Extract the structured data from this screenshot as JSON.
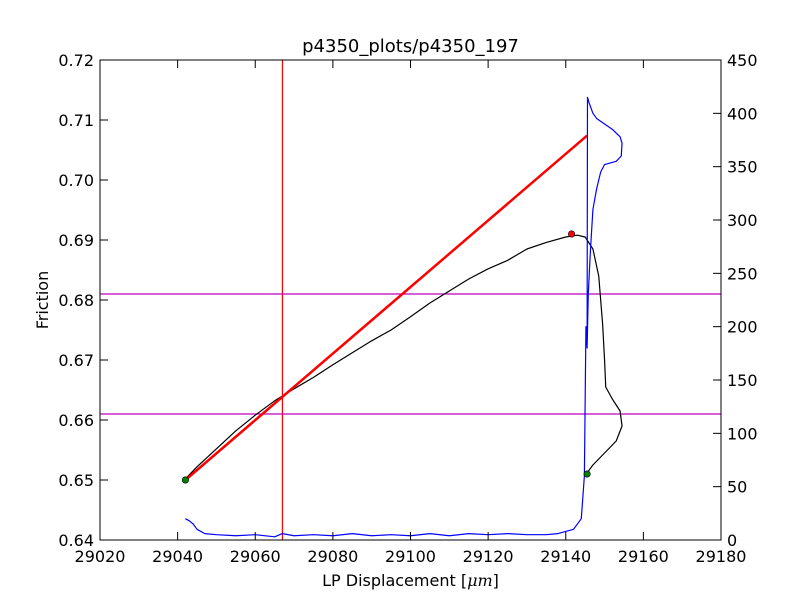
{
  "chart_data": {
    "type": "line",
    "title": "p4350_plots/p4350_197",
    "xlabel": "LP Displacement [",
    "xlabel_unit": "μm",
    "xlabel_close": "]",
    "ylabel": "Friction",
    "xlim": [
      29020,
      29180
    ],
    "ylim": [
      0.64,
      0.72
    ],
    "y2lim": [
      0,
      450
    ],
    "x_ticks": [
      29020,
      29040,
      29060,
      29080,
      29100,
      29120,
      29140,
      29160,
      29180
    ],
    "y_ticks": [
      0.64,
      0.65,
      0.66,
      0.67,
      0.68,
      0.69,
      0.7,
      0.71,
      0.72
    ],
    "y2_ticks": [
      0,
      50,
      100,
      150,
      200,
      250,
      300,
      350,
      400,
      450
    ],
    "grid": false,
    "legend": "none",
    "vline_x": 29067,
    "hlines_y": [
      0.681,
      0.661
    ],
    "colors": {
      "friction": "#000000",
      "fit": "#ff0000",
      "right_axis_series": "#0000ff",
      "guide_vertical": "#ff0000",
      "guide_horizontal": "#bf00bf",
      "marker_red": "#ff0000",
      "marker_green": "#008000"
    },
    "series": [
      {
        "axis": "left",
        "color": "#000000",
        "points": [
          [
            29042.0,
            0.6502
          ],
          [
            29045,
            0.6522
          ],
          [
            29050,
            0.6552
          ],
          [
            29055,
            0.6582
          ],
          [
            29060,
            0.6608
          ],
          [
            29065,
            0.6632
          ],
          [
            29070,
            0.6652
          ],
          [
            29075,
            0.6671
          ],
          [
            29080,
            0.6692
          ],
          [
            29085,
            0.6712
          ],
          [
            29090,
            0.6732
          ],
          [
            29095,
            0.675
          ],
          [
            29100,
            0.6772
          ],
          [
            29105,
            0.6795
          ],
          [
            29110,
            0.6815
          ],
          [
            29115,
            0.6835
          ],
          [
            29120,
            0.6852
          ],
          [
            29125,
            0.6866
          ],
          [
            29130,
            0.6885
          ],
          [
            29135,
            0.6896
          ],
          [
            29140,
            0.6905
          ],
          [
            29143,
            0.6908
          ],
          [
            29145,
            0.6905
          ],
          [
            29147,
            0.6885
          ],
          [
            29148.5,
            0.684
          ],
          [
            29149.5,
            0.676
          ],
          [
            29150,
            0.67
          ],
          [
            29150.3,
            0.6655
          ],
          [
            29152,
            0.6635
          ],
          [
            29154,
            0.6615
          ],
          [
            29154.5,
            0.659
          ],
          [
            29153,
            0.6565
          ],
          [
            29150,
            0.6545
          ],
          [
            29147,
            0.6525
          ],
          [
            29145.5,
            0.6512
          ]
        ]
      },
      {
        "axis": "left",
        "color": "#ff0000",
        "points": [
          [
            29042.0,
            0.65
          ],
          [
            29145.5,
            0.7074
          ]
        ]
      },
      {
        "axis": "right",
        "color": "#0000ff",
        "points": [
          [
            29042.0,
            20
          ],
          [
            29043,
            18
          ],
          [
            29044,
            15
          ],
          [
            29045,
            10
          ],
          [
            29047,
            6
          ],
          [
            29050,
            5
          ],
          [
            29055,
            4
          ],
          [
            29060,
            5
          ],
          [
            29065,
            3
          ],
          [
            29067,
            6
          ],
          [
            29070,
            4
          ],
          [
            29075,
            5
          ],
          [
            29080,
            4
          ],
          [
            29085,
            6
          ],
          [
            29090,
            4
          ],
          [
            29095,
            5
          ],
          [
            29100,
            4
          ],
          [
            29105,
            6
          ],
          [
            29110,
            4
          ],
          [
            29115,
            6
          ],
          [
            29120,
            5
          ],
          [
            29125,
            6
          ],
          [
            29130,
            5
          ],
          [
            29135,
            5
          ],
          [
            29138,
            6
          ],
          [
            29140,
            8
          ],
          [
            29142,
            10
          ],
          [
            29144,
            20
          ],
          [
            29144.8,
            60
          ],
          [
            29145.2,
            200
          ],
          [
            29145.5,
            180
          ],
          [
            29145.6,
            415
          ],
          [
            29146,
            410
          ],
          [
            29147,
            400
          ],
          [
            29148,
            395
          ],
          [
            29150,
            390
          ],
          [
            29152,
            385
          ],
          [
            29154,
            378
          ],
          [
            29154.5,
            372
          ],
          [
            29154.3,
            360
          ],
          [
            29153,
            355
          ],
          [
            29150,
            352
          ],
          [
            29149,
            345
          ],
          [
            29148,
            330
          ],
          [
            29147,
            310
          ],
          [
            29146.5,
            280
          ],
          [
            29146.2,
            260
          ],
          [
            29145.8,
            230
          ],
          [
            29145.5,
            180
          ]
        ]
      }
    ],
    "markers": [
      {
        "x": 29042.0,
        "y": 0.65,
        "color": "#008000"
      },
      {
        "x": 29145.5,
        "y": 0.651,
        "color": "#008000"
      },
      {
        "x": 29141.5,
        "y": 0.691,
        "color": "#ff0000"
      }
    ]
  }
}
